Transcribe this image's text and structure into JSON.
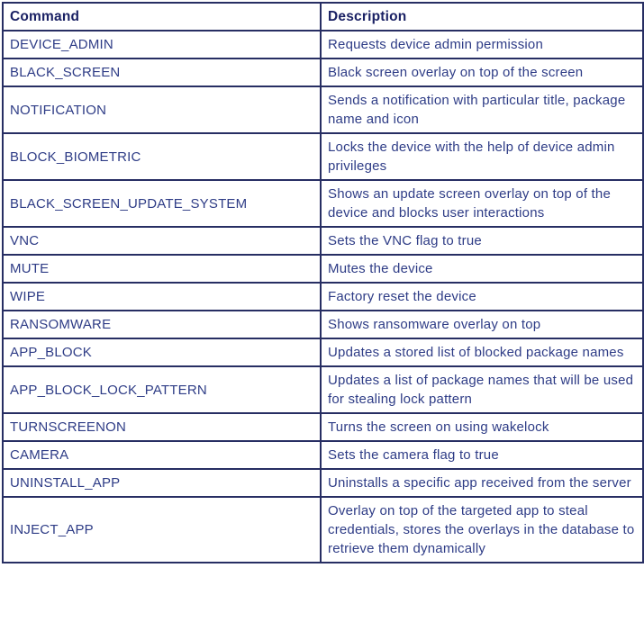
{
  "colors": {
    "border": "#272e63",
    "header_text": "#1a2164",
    "body_text": "#2e3c86",
    "background": "#ffffff"
  },
  "table": {
    "columns": [
      {
        "label": "Command"
      },
      {
        "label": "Description"
      }
    ],
    "rows": [
      {
        "command": "DEVICE_ADMIN",
        "description": "Requests device admin permission"
      },
      {
        "command": "BLACK_SCREEN",
        "description": "Black screen overlay on top of the screen"
      },
      {
        "command": "NOTIFICATION",
        "description": "Sends a notification with particular title, package name and icon"
      },
      {
        "command": "BLOCK_BIOMETRIC",
        "description": "Locks the device with the help of device admin privileges"
      },
      {
        "command": "BLACK_SCREEN_UPDATE_SYSTEM",
        "description": "Shows an update screen overlay on top of the device and blocks user interactions"
      },
      {
        "command": "VNC",
        "description": "Sets the VNC flag to true"
      },
      {
        "command": "MUTE",
        "description": "Mutes the device"
      },
      {
        "command": "WIPE",
        "description": "Factory reset the device"
      },
      {
        "command": "RANSOMWARE",
        "description": "Shows ransomware overlay on top"
      },
      {
        "command": "APP_BLOCK",
        "description": "Updates a stored list of blocked package names"
      },
      {
        "command": "APP_BLOCK_LOCK_PATTERN",
        "description": "Updates a list of package names that will be used for stealing lock pattern"
      },
      {
        "command": "TURNSCREENON",
        "description": "Turns the screen on using wakelock"
      },
      {
        "command": "CAMERA",
        "description": "Sets the camera flag to true"
      },
      {
        "command": "UNINSTALL_APP",
        "description": "Uninstalls a specific app received from the server"
      },
      {
        "command": "INJECT_APP",
        "description": "Overlay on top of the targeted app to steal credentials, stores the overlays in the database to retrieve them dynamically"
      }
    ]
  }
}
